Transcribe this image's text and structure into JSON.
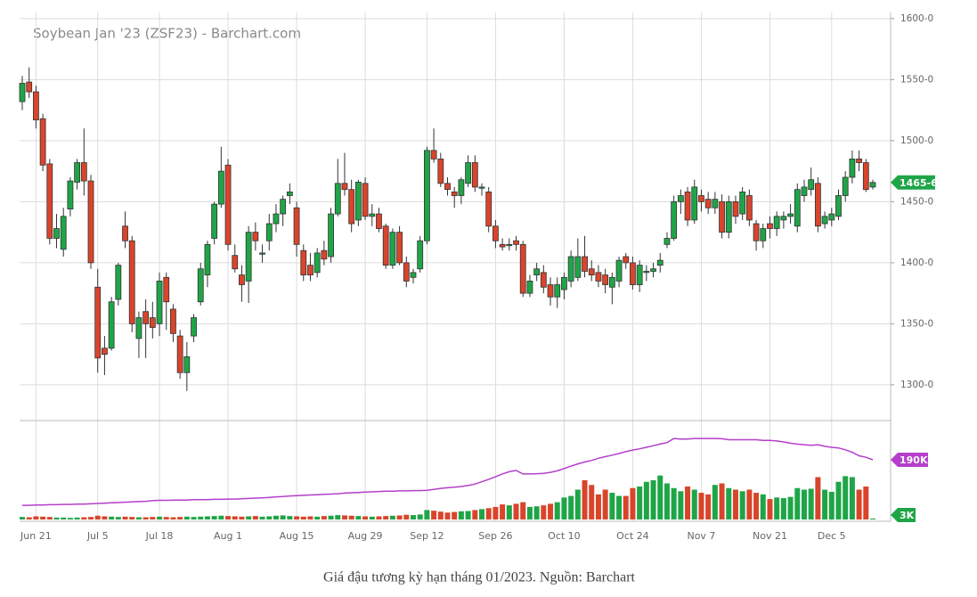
{
  "chart_data": {
    "type": "candlestick",
    "title": "Soybean Jan '23 (ZSF23) - Barchart.com",
    "caption": "Giá đậu tương kỳ hạn tháng 01/2023. Nguồn: Barchart",
    "categories": [
      null,
      null,
      "Jun 21",
      null,
      null,
      null,
      null,
      null,
      null,
      null,
      null,
      "Jul 5",
      null,
      null,
      null,
      null,
      null,
      null,
      null,
      null,
      "Jul 18",
      null,
      null,
      null,
      null,
      null,
      null,
      null,
      null,
      null,
      "Aug 1",
      null,
      null,
      null,
      null,
      null,
      null,
      null,
      null,
      null,
      "Aug 15",
      null,
      null,
      null,
      null,
      null,
      null,
      null,
      null,
      null,
      "Aug 29",
      null,
      null,
      null,
      null,
      null,
      null,
      null,
      null,
      "Sep 12",
      null,
      null,
      null,
      null,
      null,
      null,
      null,
      null,
      null,
      "Sep 26",
      null,
      null,
      null,
      null,
      null,
      null,
      null,
      null,
      null,
      "Oct 10",
      null,
      null,
      null,
      null,
      null,
      null,
      null,
      null,
      null,
      "Oct 24",
      null,
      null,
      null,
      null,
      null,
      null,
      null,
      null,
      null,
      "Nov 7",
      null,
      null,
      null,
      null,
      null,
      null,
      null,
      null,
      null,
      "Nov 21",
      null,
      null,
      null,
      null,
      null,
      null,
      null,
      null,
      "Dec 5",
      null,
      null,
      null,
      null,
      null,
      null
    ],
    "open": [
      1532,
      1548,
      1540,
      1518,
      1481,
      1420,
      1411,
      1444,
      1466,
      1482,
      1467,
      1380,
      1330,
      1330,
      1370,
      1430,
      1418,
      1338,
      1360,
      1355,
      1350,
      1388,
      1362,
      1340,
      1310,
      1340,
      1368,
      1390,
      1420,
      1448,
      1480,
      1406,
      1390,
      1385,
      1425,
      1407,
      1418,
      1432,
      1440,
      1455,
      1445,
      1410,
      1398,
      1392,
      1410,
      1405,
      1440,
      1465,
      1460,
      1435,
      1465,
      1438,
      1440,
      1430,
      1398,
      1425,
      1400,
      1388,
      1395,
      1418,
      1492,
      1485,
      1465,
      1458,
      1455,
      1465,
      1482,
      1461,
      1458,
      1430,
      1415,
      1414,
      1418,
      1415,
      1375,
      1390,
      1392,
      1382,
      1372,
      1378,
      1385,
      1388,
      1405,
      1395,
      1392,
      1390,
      1380,
      1385,
      1405,
      1400,
      1382,
      1392,
      1393,
      1398,
      1415,
      1420,
      1450,
      1458,
      1435,
      1455,
      1452,
      1445,
      1450,
      1425,
      1450,
      1440,
      1455,
      1432,
      1418,
      1432,
      1428,
      1435,
      1438,
      1430,
      1455,
      1460,
      1465,
      1432,
      1435,
      1438,
      1455,
      1470,
      1485,
      1482,
      1462
    ],
    "high": [
      1553,
      1560,
      1545,
      1522,
      1485,
      1440,
      1445,
      1470,
      1485,
      1510,
      1472,
      1395,
      1340,
      1372,
      1400,
      1442,
      1422,
      1360,
      1370,
      1368,
      1392,
      1392,
      1366,
      1345,
      1335,
      1358,
      1400,
      1418,
      1450,
      1495,
      1485,
      1415,
      1398,
      1430,
      1433,
      1415,
      1440,
      1448,
      1455,
      1465,
      1450,
      1415,
      1408,
      1412,
      1418,
      1445,
      1485,
      1490,
      1468,
      1468,
      1470,
      1448,
      1445,
      1432,
      1428,
      1430,
      1405,
      1395,
      1422,
      1495,
      1510,
      1490,
      1470,
      1462,
      1470,
      1488,
      1488,
      1465,
      1462,
      1435,
      1420,
      1420,
      1422,
      1418,
      1390,
      1400,
      1398,
      1388,
      1388,
      1392,
      1410,
      1420,
      1422,
      1402,
      1398,
      1395,
      1392,
      1405,
      1408,
      1405,
      1402,
      1398,
      1400,
      1408,
      1425,
      1455,
      1460,
      1462,
      1468,
      1460,
      1458,
      1458,
      1456,
      1455,
      1455,
      1462,
      1460,
      1435,
      1432,
      1438,
      1442,
      1442,
      1448,
      1465,
      1468,
      1478,
      1470,
      1442,
      1445,
      1460,
      1475,
      1492,
      1492,
      1485,
      1468
    ],
    "low": [
      1525,
      1535,
      1510,
      1475,
      1415,
      1412,
      1405,
      1438,
      1460,
      1455,
      1395,
      1310,
      1308,
      1328,
      1365,
      1412,
      1343,
      1322,
      1322,
      1338,
      1340,
      1345,
      1335,
      1305,
      1295,
      1335,
      1365,
      1380,
      1415,
      1445,
      1410,
      1392,
      1368,
      1367,
      1410,
      1400,
      1410,
      1425,
      1430,
      1448,
      1405,
      1385,
      1385,
      1388,
      1398,
      1400,
      1438,
      1455,
      1425,
      1430,
      1435,
      1430,
      1425,
      1395,
      1395,
      1398,
      1380,
      1383,
      1392,
      1415,
      1482,
      1462,
      1455,
      1445,
      1448,
      1462,
      1458,
      1455,
      1425,
      1412,
      1410,
      1410,
      1410,
      1372,
      1372,
      1385,
      1375,
      1365,
      1363,
      1370,
      1380,
      1385,
      1388,
      1385,
      1380,
      1375,
      1366,
      1380,
      1395,
      1378,
      1376,
      1385,
      1388,
      1392,
      1412,
      1418,
      1440,
      1430,
      1432,
      1442,
      1440,
      1440,
      1420,
      1420,
      1432,
      1435,
      1430,
      1410,
      1412,
      1420,
      1422,
      1428,
      1432,
      1425,
      1450,
      1455,
      1425,
      1428,
      1430,
      1435,
      1450,
      1465,
      1475,
      1458,
      1460
    ],
    "close": [
      1547,
      1540,
      1517,
      1480,
      1420,
      1428,
      1438,
      1467,
      1482,
      1467,
      1400,
      1322,
      1325,
      1368,
      1398,
      1418,
      1350,
      1355,
      1350,
      1347,
      1385,
      1368,
      1342,
      1310,
      1323,
      1355,
      1395,
      1415,
      1448,
      1475,
      1415,
      1395,
      1382,
      1425,
      1418,
      1408,
      1432,
      1440,
      1452,
      1458,
      1415,
      1390,
      1390,
      1408,
      1403,
      1440,
      1465,
      1460,
      1432,
      1466,
      1438,
      1440,
      1428,
      1398,
      1425,
      1400,
      1385,
      1392,
      1418,
      1492,
      1485,
      1465,
      1460,
      1455,
      1468,
      1482,
      1462,
      1462,
      1430,
      1418,
      1413,
      1415,
      1415,
      1375,
      1385,
      1395,
      1380,
      1372,
      1382,
      1388,
      1405,
      1405,
      1393,
      1390,
      1385,
      1382,
      1388,
      1402,
      1400,
      1382,
      1398,
      1393,
      1395,
      1402,
      1420,
      1450,
      1455,
      1435,
      1462,
      1450,
      1445,
      1452,
      1425,
      1450,
      1438,
      1458,
      1435,
      1418,
      1428,
      1428,
      1438,
      1438,
      1440,
      1460,
      1462,
      1468,
      1430,
      1438,
      1440,
      1455,
      1470,
      1485,
      1482,
      1460,
      1465.75
    ],
    "last_close_label": "1465-6",
    "up_color": "#1fa548",
    "down_color": "#d8452b",
    "ylim": [
      1270,
      1605
    ],
    "yticks": [
      {
        "value": 1300,
        "label": "1300-0"
      },
      {
        "value": 1350,
        "label": "1350-0"
      },
      {
        "value": 1400,
        "label": "1400-0"
      },
      {
        "value": 1450,
        "label": "1450-0"
      },
      {
        "value": 1500,
        "label": "1500-0"
      },
      {
        "value": 1550,
        "label": "1550-0"
      },
      {
        "value": 1600,
        "label": "1600-0"
      }
    ],
    "grid": true,
    "volume": {
      "name": "Volume",
      "values": [
        8,
        7,
        10,
        9,
        8,
        6,
        6,
        5,
        6,
        7,
        8,
        12,
        10,
        9,
        8,
        9,
        8,
        7,
        7,
        8,
        9,
        8,
        7,
        8,
        9,
        8,
        9,
        10,
        11,
        12,
        11,
        10,
        9,
        10,
        11,
        9,
        10,
        12,
        13,
        11,
        10,
        9,
        10,
        9,
        11,
        12,
        14,
        13,
        12,
        11,
        10,
        9,
        10,
        11,
        12,
        13,
        15,
        14,
        16,
        30,
        28,
        25,
        22,
        24,
        26,
        27,
        30,
        33,
        36,
        40,
        48,
        45,
        50,
        55,
        40,
        42,
        45,
        50,
        55,
        70,
        75,
        95,
        125,
        110,
        80,
        95,
        85,
        75,
        75,
        100,
        105,
        120,
        125,
        140,
        115,
        100,
        90,
        105,
        95,
        85,
        80,
        110,
        115,
        100,
        95,
        90,
        95,
        85,
        80,
        65,
        70,
        68,
        72,
        100,
        95,
        98,
        135,
        95,
        88,
        120,
        138,
        135,
        95,
        105,
        3
      ],
      "last_label": "3K"
    },
    "open_interest": {
      "name": "Open Interest",
      "color": "#b53fcb",
      "values": [
        45,
        45,
        46,
        46,
        47,
        47,
        48,
        48,
        49,
        49,
        50,
        51,
        52,
        53,
        54,
        55,
        56,
        57,
        58,
        60,
        61,
        61,
        62,
        62,
        62,
        63,
        63,
        63,
        64,
        64,
        65,
        65,
        66,
        67,
        68,
        69,
        70,
        72,
        73,
        75,
        76,
        77,
        78,
        79,
        80,
        81,
        82,
        84,
        85,
        86,
        87,
        88,
        89,
        90,
        90,
        91,
        91,
        92,
        92,
        93,
        96,
        99,
        101,
        103,
        105,
        108,
        113,
        120,
        128,
        136,
        145,
        152,
        156,
        145,
        145,
        146,
        147,
        150,
        155,
        162,
        170,
        177,
        183,
        188,
        195,
        200,
        205,
        210,
        216,
        221,
        225,
        230,
        235,
        240,
        245,
        258,
        256,
        256,
        258,
        258,
        258,
        258,
        257,
        254,
        254,
        254,
        254,
        254,
        252,
        252,
        250,
        247,
        243,
        240,
        238,
        236,
        238,
        233,
        230,
        228,
        222,
        214,
        203,
        198,
        190
      ],
      "last_label": "190K"
    },
    "y2lim": [
      0,
      315
    ]
  }
}
